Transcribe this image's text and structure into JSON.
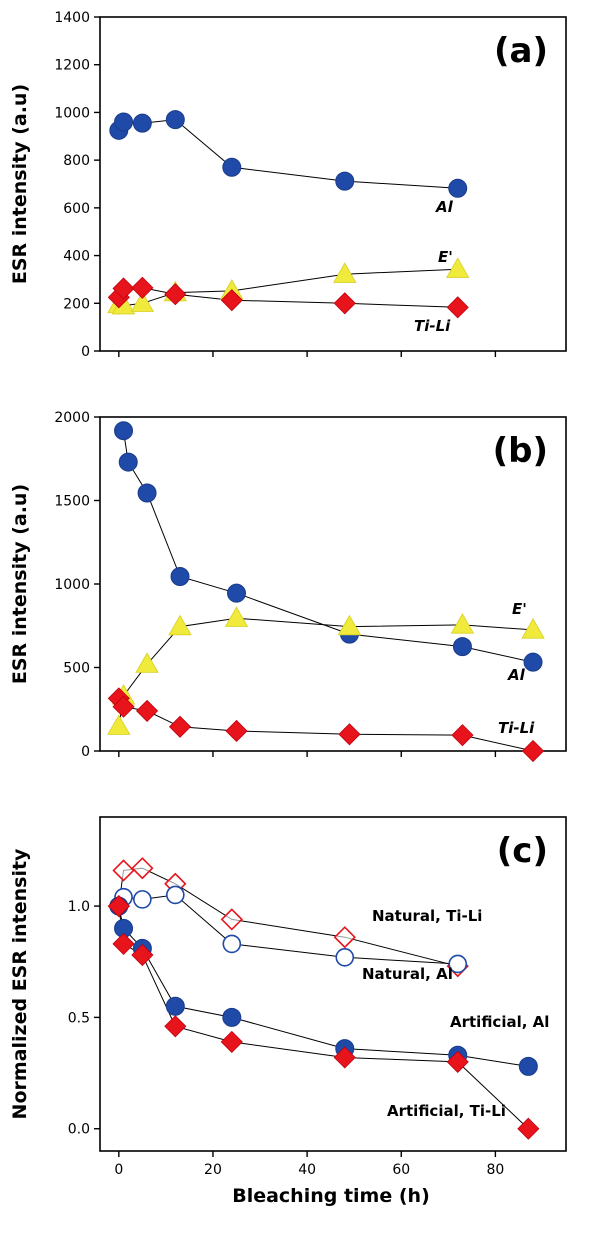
{
  "chart_data": [
    {
      "type": "line",
      "panel_label": "(a)",
      "ylabel": "ESR intensity (a.u)",
      "xlabel": "",
      "xlim": [
        -4,
        95
      ],
      "ylim": [
        0,
        1400
      ],
      "yticks": [
        0,
        200,
        400,
        600,
        800,
        1000,
        1200,
        1400
      ],
      "xticks": [
        0,
        20,
        40,
        60,
        80
      ],
      "x_tick_labels_shown": false,
      "series": [
        {
          "name": "Al",
          "marker": "circle",
          "fill": "#1f4aa8",
          "x": [
            0,
            1,
            5,
            12,
            24,
            48,
            72
          ],
          "y": [
            925,
            960,
            955,
            970,
            770,
            712,
            682
          ]
        },
        {
          "name": "E'",
          "marker": "triangle",
          "fill": "#f0ea3c",
          "x": [
            0,
            1,
            5,
            12,
            24,
            48,
            72
          ],
          "y": [
            195,
            190,
            200,
            245,
            252,
            322,
            343
          ]
        },
        {
          "name": "Ti-Li",
          "marker": "diamond",
          "fill": "#e8141c",
          "x": [
            0,
            1,
            5,
            12,
            24,
            48,
            72
          ],
          "y": [
            225,
            262,
            265,
            238,
            213,
            200,
            183
          ]
        }
      ],
      "annotations": [
        {
          "text": "Al",
          "x": 72,
          "y": 682
        },
        {
          "text": "E'",
          "x": 72,
          "y": 343
        },
        {
          "text": "Ti-Li",
          "x": 72,
          "y": 183
        }
      ]
    },
    {
      "type": "line",
      "panel_label": "(b)",
      "ylabel": "ESR intensity (a.u)",
      "xlabel": "",
      "xlim": [
        -4,
        95
      ],
      "ylim": [
        0,
        2000
      ],
      "yticks": [
        0,
        500,
        1000,
        1500,
        2000
      ],
      "xticks": [
        0,
        20,
        40,
        60,
        80
      ],
      "x_tick_labels_shown": false,
      "series": [
        {
          "name": "Al",
          "marker": "circle",
          "fill": "#1f4aa8",
          "x": [
            1,
            2,
            6,
            13,
            25,
            49,
            73,
            88
          ],
          "y": [
            1918,
            1730,
            1545,
            1045,
            945,
            700,
            625,
            532
          ]
        },
        {
          "name": "E'",
          "marker": "triangle",
          "fill": "#f0ea3c",
          "x": [
            0,
            1,
            6,
            13,
            25,
            49,
            73,
            88
          ],
          "y": [
            148,
            330,
            520,
            745,
            795,
            745,
            755,
            725
          ]
        },
        {
          "name": "Ti-Li",
          "marker": "diamond",
          "fill": "#e8141c",
          "x": [
            0,
            1,
            6,
            13,
            25,
            49,
            73,
            88
          ],
          "y": [
            315,
            265,
            240,
            145,
            120,
            100,
            95,
            0
          ]
        }
      ],
      "annotations": [
        {
          "text": "E'",
          "x": 88,
          "y": 725
        },
        {
          "text": "Al",
          "x": 88,
          "y": 532
        },
        {
          "text": "Ti-Li",
          "x": 88,
          "y": 0
        }
      ]
    },
    {
      "type": "line",
      "panel_label": "(c)",
      "ylabel": "Normalized ESR intensity",
      "xlabel": "Bleaching time (h)",
      "xlim": [
        -4,
        95
      ],
      "ylim": [
        -0.1,
        1.4
      ],
      "yticks": [
        0.0,
        0.5,
        1.0
      ],
      "ytick_labels": [
        "0.0",
        "0.5",
        "1.0"
      ],
      "xticks": [
        0,
        20,
        40,
        60,
        80
      ],
      "xtick_labels": [
        "0",
        "20",
        "40",
        "60",
        "80"
      ],
      "series": [
        {
          "name": "Natural, Ti-Li",
          "marker": "diamond-open",
          "fill": "#e8141c",
          "x": [
            0,
            1,
            5,
            12,
            24,
            48,
            72
          ],
          "y": [
            1.0,
            1.16,
            1.17,
            1.1,
            0.94,
            0.86,
            0.73
          ]
        },
        {
          "name": "Natural, Al",
          "marker": "circle-open",
          "fill": "#1f4aa8",
          "x": [
            0,
            1,
            5,
            12,
            24,
            48,
            72
          ],
          "y": [
            1.0,
            1.04,
            1.03,
            1.05,
            0.83,
            0.77,
            0.74
          ]
        },
        {
          "name": "Artificial, Al",
          "marker": "circle",
          "fill": "#1f4aa8",
          "x": [
            0,
            1,
            5,
            12,
            24,
            48,
            72,
            87
          ],
          "y": [
            1.0,
            0.9,
            0.81,
            0.55,
            0.5,
            0.36,
            0.33,
            0.28
          ]
        },
        {
          "name": "Artificial, Ti-Li",
          "marker": "diamond",
          "fill": "#e8141c",
          "x": [
            0,
            1,
            5,
            12,
            24,
            48,
            72,
            87
          ],
          "y": [
            1.0,
            0.83,
            0.78,
            0.46,
            0.39,
            0.32,
            0.3,
            0.0
          ]
        }
      ],
      "annotations": [
        {
          "text": "Natural, Ti-Li",
          "x": 72,
          "y": 0.86
        },
        {
          "text": "Natural, Al",
          "x": 72,
          "y": 0.74
        },
        {
          "text": "Artificial, Al",
          "x": 87,
          "y": 0.28
        },
        {
          "text": "Artificial, Ti-Li",
          "x": 87,
          "y": 0.0
        }
      ]
    }
  ]
}
